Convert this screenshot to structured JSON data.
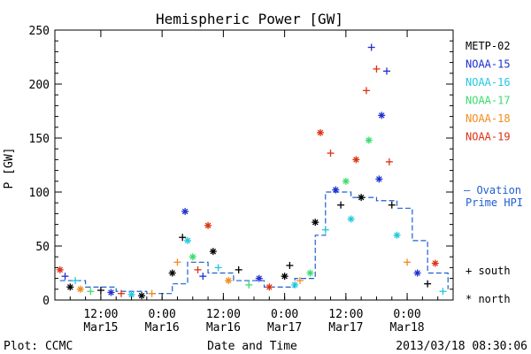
{
  "chart_data": {
    "type": "scatter",
    "title": "Hemispheric Power [GW]",
    "ylabel": "P [GW]",
    "xlabel": "Date and Time",
    "ylim": [
      0,
      250
    ],
    "xlim": [
      "2013-03-15T03:00",
      "2013-03-18T09:00"
    ],
    "yticks": [
      0,
      50,
      100,
      150,
      200,
      250
    ],
    "xticks": [
      {
        "time": "2013-03-15T12:00",
        "top": "12:00",
        "bottom": "Mar15"
      },
      {
        "time": "2013-03-16T00:00",
        "top": "0:00",
        "bottom": "Mar16"
      },
      {
        "time": "2013-03-16T12:00",
        "top": "12:00",
        "bottom": "Mar16"
      },
      {
        "time": "2013-03-17T00:00",
        "top": "0:00",
        "bottom": "Mar17"
      },
      {
        "time": "2013-03-17T12:00",
        "top": "12:00",
        "bottom": "Mar17"
      },
      {
        "time": "2013-03-18T00:00",
        "top": "0:00",
        "bottom": "Mar18"
      }
    ],
    "series": [
      {
        "name": "METP-02",
        "color": "#000000"
      },
      {
        "name": "NOAA-15",
        "color": "#1f2fd0"
      },
      {
        "name": "NOAA-16",
        "color": "#22c8e0"
      },
      {
        "name": "NOAA-17",
        "color": "#3cdc70"
      },
      {
        "name": "NOAA-18",
        "color": "#f08c1e"
      },
      {
        "name": "NOAA-19",
        "color": "#dc3214"
      }
    ],
    "markers": {
      "south": "+ south",
      "north": "* north"
    },
    "ovation": {
      "label_line1": "— Ovation",
      "label_line2": "Prime HPI",
      "color": "#1f5fd0"
    },
    "points": [
      {
        "t": "2013-03-15T04:00",
        "v": 28,
        "s": "NOAA-19",
        "m": "north"
      },
      {
        "t": "2013-03-15T05:00",
        "v": 22,
        "s": "NOAA-15",
        "m": "south"
      },
      {
        "t": "2013-03-15T06:00",
        "v": 12,
        "s": "METP-02",
        "m": "north"
      },
      {
        "t": "2013-03-15T07:00",
        "v": 18,
        "s": "NOAA-16",
        "m": "south"
      },
      {
        "t": "2013-03-15T08:00",
        "v": 10,
        "s": "NOAA-18",
        "m": "north"
      },
      {
        "t": "2013-03-15T10:00",
        "v": 8,
        "s": "NOAA-17",
        "m": "south"
      },
      {
        "t": "2013-03-15T12:00",
        "v": 9,
        "s": "METP-02",
        "m": "south"
      },
      {
        "t": "2013-03-15T14:00",
        "v": 7,
        "s": "NOAA-15",
        "m": "north"
      },
      {
        "t": "2013-03-15T16:00",
        "v": 6,
        "s": "NOAA-19",
        "m": "south"
      },
      {
        "t": "2013-03-15T18:00",
        "v": 5,
        "s": "NOAA-16",
        "m": "north"
      },
      {
        "t": "2013-03-15T20:00",
        "v": 4,
        "s": "METP-02",
        "m": "north"
      },
      {
        "t": "2013-03-15T22:00",
        "v": 6,
        "s": "NOAA-18",
        "m": "south"
      },
      {
        "t": "2013-03-16T02:00",
        "v": 25,
        "s": "METP-02",
        "m": "north"
      },
      {
        "t": "2013-03-16T03:00",
        "v": 35,
        "s": "NOAA-18",
        "m": "south"
      },
      {
        "t": "2013-03-16T04:00",
        "v": 58,
        "s": "METP-02",
        "m": "south"
      },
      {
        "t": "2013-03-16T04:30",
        "v": 82,
        "s": "NOAA-15",
        "m": "north"
      },
      {
        "t": "2013-03-16T05:00",
        "v": 55,
        "s": "NOAA-16",
        "m": "north"
      },
      {
        "t": "2013-03-16T06:00",
        "v": 40,
        "s": "NOAA-17",
        "m": "north"
      },
      {
        "t": "2013-03-16T07:00",
        "v": 28,
        "s": "NOAA-19",
        "m": "south"
      },
      {
        "t": "2013-03-16T08:00",
        "v": 22,
        "s": "NOAA-15",
        "m": "south"
      },
      {
        "t": "2013-03-16T09:00",
        "v": 69,
        "s": "NOAA-19",
        "m": "north"
      },
      {
        "t": "2013-03-16T10:00",
        "v": 45,
        "s": "METP-02",
        "m": "north"
      },
      {
        "t": "2013-03-16T11:00",
        "v": 30,
        "s": "NOAA-16",
        "m": "south"
      },
      {
        "t": "2013-03-16T13:00",
        "v": 18,
        "s": "NOAA-18",
        "m": "north"
      },
      {
        "t": "2013-03-16T15:00",
        "v": 28,
        "s": "METP-02",
        "m": "south"
      },
      {
        "t": "2013-03-16T17:00",
        "v": 14,
        "s": "NOAA-17",
        "m": "south"
      },
      {
        "t": "2013-03-16T19:00",
        "v": 20,
        "s": "NOAA-15",
        "m": "north"
      },
      {
        "t": "2013-03-16T21:00",
        "v": 12,
        "s": "NOAA-19",
        "m": "north"
      },
      {
        "t": "2013-03-17T00:00",
        "v": 22,
        "s": "METP-02",
        "m": "north"
      },
      {
        "t": "2013-03-17T01:00",
        "v": 32,
        "s": "METP-02",
        "m": "south"
      },
      {
        "t": "2013-03-17T02:00",
        "v": 14,
        "s": "NOAA-16",
        "m": "north"
      },
      {
        "t": "2013-03-17T03:00",
        "v": 18,
        "s": "NOAA-18",
        "m": "south"
      },
      {
        "t": "2013-03-17T05:00",
        "v": 25,
        "s": "NOAA-17",
        "m": "north"
      },
      {
        "t": "2013-03-17T06:00",
        "v": 72,
        "s": "METP-02",
        "m": "north"
      },
      {
        "t": "2013-03-17T07:00",
        "v": 155,
        "s": "NOAA-19",
        "m": "north"
      },
      {
        "t": "2013-03-17T08:00",
        "v": 65,
        "s": "NOAA-16",
        "m": "south"
      },
      {
        "t": "2013-03-17T09:00",
        "v": 136,
        "s": "NOAA-19",
        "m": "south"
      },
      {
        "t": "2013-03-17T10:00",
        "v": 102,
        "s": "NOAA-15",
        "m": "north"
      },
      {
        "t": "2013-03-17T11:00",
        "v": 88,
        "s": "METP-02",
        "m": "south"
      },
      {
        "t": "2013-03-17T12:00",
        "v": 110,
        "s": "NOAA-17",
        "m": "north"
      },
      {
        "t": "2013-03-17T13:00",
        "v": 75,
        "s": "NOAA-16",
        "m": "north"
      },
      {
        "t": "2013-03-17T14:00",
        "v": 130,
        "s": "NOAA-19",
        "m": "north"
      },
      {
        "t": "2013-03-17T15:00",
        "v": 95,
        "s": "METP-02",
        "m": "north"
      },
      {
        "t": "2013-03-17T16:00",
        "v": 194,
        "s": "NOAA-19",
        "m": "south"
      },
      {
        "t": "2013-03-17T16:30",
        "v": 148,
        "s": "NOAA-17",
        "m": "north"
      },
      {
        "t": "2013-03-17T17:00",
        "v": 234,
        "s": "NOAA-15",
        "m": "south"
      },
      {
        "t": "2013-03-17T18:00",
        "v": 214,
        "s": "NOAA-19",
        "m": "south"
      },
      {
        "t": "2013-03-17T18:30",
        "v": 112,
        "s": "NOAA-15",
        "m": "north"
      },
      {
        "t": "2013-03-17T19:00",
        "v": 171,
        "s": "NOAA-15",
        "m": "north"
      },
      {
        "t": "2013-03-17T20:00",
        "v": 212,
        "s": "NOAA-15",
        "m": "south"
      },
      {
        "t": "2013-03-17T20:30",
        "v": 128,
        "s": "NOAA-19",
        "m": "south"
      },
      {
        "t": "2013-03-17T21:00",
        "v": 88,
        "s": "METP-02",
        "m": "south"
      },
      {
        "t": "2013-03-17T22:00",
        "v": 60,
        "s": "NOAA-16",
        "m": "north"
      },
      {
        "t": "2013-03-18T00:00",
        "v": 35,
        "s": "NOAA-18",
        "m": "south"
      },
      {
        "t": "2013-03-18T02:00",
        "v": 25,
        "s": "NOAA-15",
        "m": "north"
      },
      {
        "t": "2013-03-18T04:00",
        "v": 15,
        "s": "METP-02",
        "m": "south"
      },
      {
        "t": "2013-03-18T05:30",
        "v": 34,
        "s": "NOAA-19",
        "m": "north"
      },
      {
        "t": "2013-03-18T07:00",
        "v": 8,
        "s": "NOAA-16",
        "m": "south"
      }
    ],
    "ovation_values": [
      {
        "t": "2013-03-15T04:00",
        "v": 18
      },
      {
        "t": "2013-03-15T09:00",
        "v": 12
      },
      {
        "t": "2013-03-15T15:00",
        "v": 8
      },
      {
        "t": "2013-03-15T21:00",
        "v": 6
      },
      {
        "t": "2013-03-16T02:00",
        "v": 15
      },
      {
        "t": "2013-03-16T05:00",
        "v": 35
      },
      {
        "t": "2013-03-16T09:00",
        "v": 25
      },
      {
        "t": "2013-03-16T14:00",
        "v": 18
      },
      {
        "t": "2013-03-16T20:00",
        "v": 12
      },
      {
        "t": "2013-03-17T02:00",
        "v": 20
      },
      {
        "t": "2013-03-17T06:00",
        "v": 60
      },
      {
        "t": "2013-03-17T08:00",
        "v": 100
      },
      {
        "t": "2013-03-17T13:00",
        "v": 95
      },
      {
        "t": "2013-03-17T18:00",
        "v": 92
      },
      {
        "t": "2013-03-17T22:00",
        "v": 85
      },
      {
        "t": "2013-03-18T01:00",
        "v": 55
      },
      {
        "t": "2013-03-18T04:00",
        "v": 25
      },
      {
        "t": "2013-03-18T08:00",
        "v": 10
      }
    ]
  },
  "footer": {
    "plot_credit": "Plot: CCMC",
    "timestamp": "2013/03/18 08:30:06"
  }
}
